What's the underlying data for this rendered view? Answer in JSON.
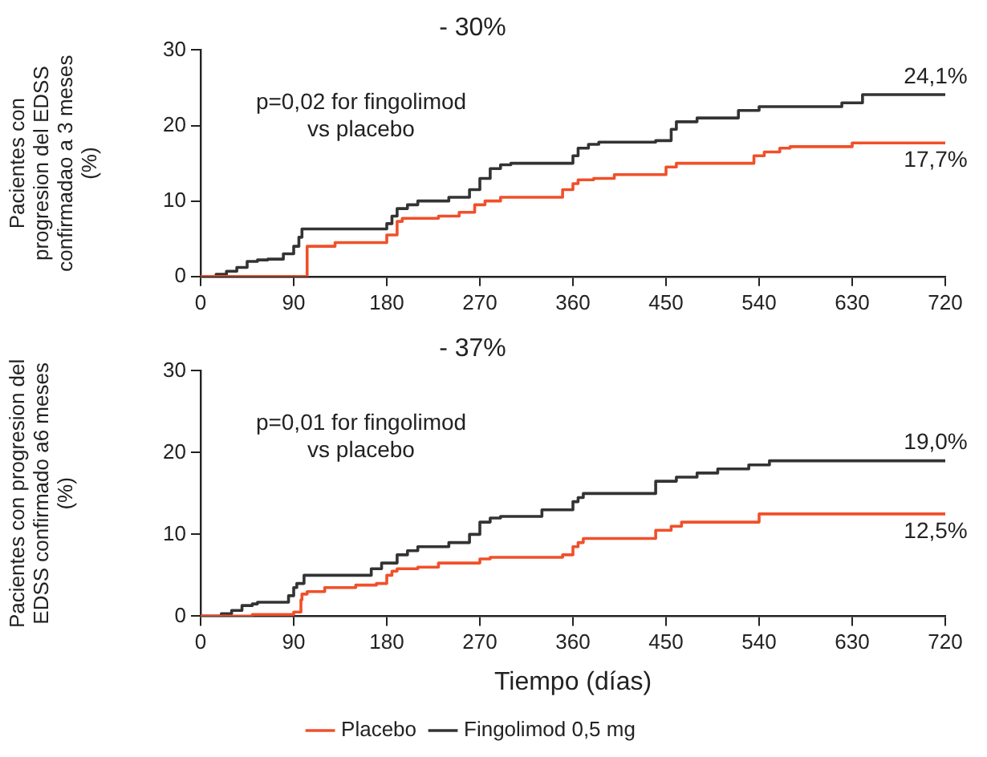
{
  "chart_data": [
    {
      "type": "step",
      "title": "- 30%",
      "ylabel": "Pacientes con\nprogresion del EDSS\nconfirmadao a 3 meses\n(%)",
      "xlim": [
        0,
        720
      ],
      "xticks": [
        0,
        90,
        180,
        270,
        360,
        450,
        540,
        630,
        720
      ],
      "ylim": [
        0,
        30
      ],
      "yticks": [
        0,
        10,
        20,
        30
      ],
      "grid": false,
      "legend": false,
      "marker": "none",
      "annotations": [
        "p=0,02 for fingolimod\nvs placebo"
      ],
      "series": [
        {
          "color": "#f0502a",
          "x": [
            0,
            103,
            103,
            130,
            180,
            190,
            195,
            230,
            250,
            265,
            275,
            290,
            350,
            360,
            365,
            380,
            400,
            450,
            460,
            470,
            535,
            545,
            560,
            570,
            630,
            640,
            720
          ],
          "values": [
            0,
            0,
            3.5,
            4,
            4.5,
            5.5,
            7.3,
            7.7,
            8,
            8.5,
            9.5,
            10,
            10.5,
            11.5,
            12.3,
            12.8,
            13,
            13.5,
            14.5,
            15,
            15,
            16,
            16.5,
            17,
            17.2,
            17.7,
            17.7
          ],
          "value_labels": [
            null,
            null,
            null,
            null,
            null,
            null,
            null,
            null,
            null,
            null,
            null,
            null,
            null,
            null,
            null,
            null,
            null,
            null,
            null,
            null,
            null,
            null,
            null,
            null,
            null,
            null,
            "17,7%"
          ]
        },
        {
          "color": "#333333",
          "x": [
            0,
            15,
            25,
            35,
            45,
            55,
            65,
            80,
            90,
            95,
            98,
            105,
            180,
            185,
            190,
            200,
            210,
            240,
            260,
            270,
            280,
            290,
            300,
            360,
            365,
            375,
            385,
            440,
            455,
            460,
            480,
            520,
            540,
            555,
            620,
            640,
            650,
            720
          ],
          "values": [
            0,
            0,
            0.3,
            0.7,
            1.2,
            2,
            2.2,
            2.3,
            3,
            4,
            5.2,
            6.3,
            6.3,
            7,
            8,
            9,
            9.5,
            10,
            10.5,
            11.5,
            13,
            14.3,
            14.8,
            15,
            16,
            17,
            17.5,
            17.8,
            18,
            19.5,
            20.5,
            21,
            22,
            22.5,
            22.5,
            23,
            24.1,
            24.1
          ],
          "value_labels": [
            null,
            null,
            null,
            null,
            null,
            null,
            null,
            null,
            null,
            null,
            null,
            null,
            null,
            null,
            null,
            null,
            null,
            null,
            null,
            null,
            null,
            null,
            null,
            null,
            null,
            null,
            null,
            null,
            null,
            null,
            null,
            null,
            null,
            null,
            null,
            null,
            null,
            "24,1%"
          ]
        }
      ]
    },
    {
      "type": "step",
      "title": "- 37%",
      "xlabel": "Tiempo (días)",
      "ylabel": "Pacientes con progresion del\nEDSS confirmado a6 meses\n(%)",
      "xlim": [
        0,
        720
      ],
      "xticks": [
        0,
        90,
        180,
        270,
        360,
        450,
        540,
        630,
        720
      ],
      "ylim": [
        0,
        30
      ],
      "yticks": [
        0,
        10,
        20,
        30
      ],
      "grid": false,
      "legend": "bottom",
      "marker": "none",
      "annotations": [
        "p=0,01 for fingolimod\nvs placebo"
      ],
      "series": [
        {
          "name": "Placebo",
          "color": "#f0502a",
          "x": [
            0,
            50,
            90,
            97,
            98,
            103,
            120,
            150,
            170,
            180,
            185,
            190,
            210,
            230,
            270,
            280,
            350,
            360,
            365,
            370,
            440,
            455,
            465,
            540,
            550,
            720
          ],
          "values": [
            0,
            0,
            0.2,
            0.5,
            2,
            2.7,
            3,
            3.5,
            3.8,
            4,
            5,
            5.5,
            5.8,
            6,
            6.5,
            7,
            7.2,
            7.5,
            8.5,
            9,
            9.5,
            10.5,
            11,
            11.5,
            12.5,
            12.5
          ],
          "value_labels": [
            null,
            null,
            null,
            null,
            null,
            null,
            null,
            null,
            null,
            null,
            null,
            null,
            null,
            null,
            null,
            null,
            null,
            null,
            null,
            null,
            null,
            null,
            null,
            null,
            null,
            "12,5%"
          ]
        },
        {
          "name": "Fingolimod 0,5 mg",
          "color": "#333333",
          "x": [
            0,
            20,
            30,
            40,
            50,
            55,
            85,
            90,
            93,
            100,
            105,
            165,
            175,
            190,
            200,
            210,
            240,
            260,
            270,
            280,
            290,
            330,
            360,
            365,
            370,
            440,
            460,
            480,
            500,
            530,
            550,
            565,
            720
          ],
          "values": [
            0,
            0,
            0.3,
            0.7,
            1.3,
            1.5,
            1.7,
            2.5,
            3.5,
            4,
            5,
            5,
            5.8,
            6.5,
            7.5,
            8,
            8.5,
            9,
            10,
            11.5,
            12,
            12.2,
            13,
            14,
            14.5,
            15,
            16.5,
            17,
            17.5,
            18,
            18.5,
            19,
            19
          ],
          "value_labels": [
            null,
            null,
            null,
            null,
            null,
            null,
            null,
            null,
            null,
            null,
            null,
            null,
            null,
            null,
            null,
            null,
            null,
            null,
            null,
            null,
            null,
            null,
            null,
            null,
            null,
            null,
            null,
            null,
            null,
            null,
            null,
            null,
            "19,0%"
          ]
        }
      ]
    }
  ]
}
